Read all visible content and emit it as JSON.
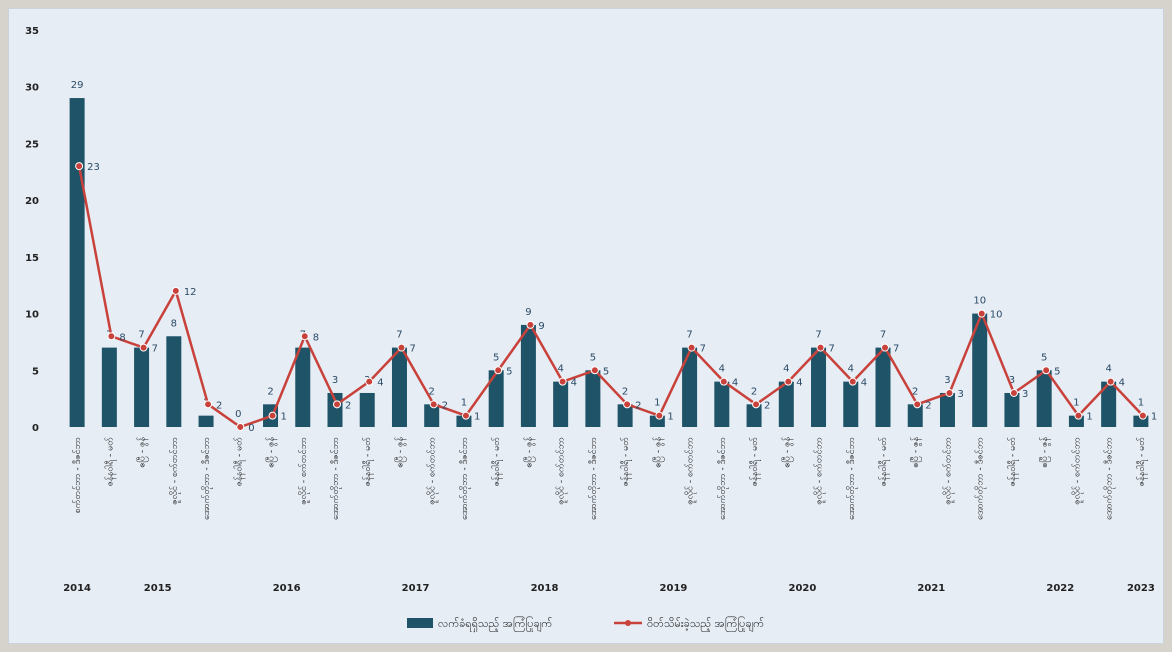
{
  "chart_data": {
    "type": "bar+line",
    "ylim": [
      0,
      35
    ],
    "yticks": [
      0,
      5,
      10,
      15,
      20,
      25,
      30,
      35
    ],
    "grid": false,
    "legend_position": "bottom-center",
    "colors": {
      "bar": "#1f5468",
      "line": "#c9413b",
      "marker": "#c9413b",
      "background": "#e6edf5"
    },
    "categories": [
      "စက်တင်ဘာ - ဒီဇင်ဘာ",
      "ဇန်နဝါရီ - မတ်",
      "ဧပြီ - ဇွန်",
      "ဇူလိုင် - စက်တင်ဘာ",
      "အောက်တိုဘာ - ဒီဇင်ဘာ",
      "ဇန်နဝါရီ - မတ်",
      "ဧပြီ - ဇွန်",
      "ဇူလိုင် - စက်တင်ဘာ",
      "အောက်တိုဘာ - ဒီဇင်ဘာ",
      "ဇန်နဝါရီ - မတ်",
      "ဧပြီ - ဇွန်",
      "ဇူလိုင် - စက်တင်ဘာ",
      "အောက်တိုဘာ - ဒီဇင်ဘာ",
      "ဇန်နဝါရီ - မတ်",
      "ဧပြီ - ဇွန်",
      "ဇူလိုင် - စက်တင်ဘာ",
      "အောက်တိုဘာ - ဒီဇင်ဘာ",
      "ဇန်နဝါရီ - မတ်",
      "ဧပြီ - ဇွန်",
      "ဇူလိုင် - စက်တင်ဘာ",
      "အောက်တိုဘာ - ဒီဇင်ဘာ",
      "ဇန်နဝါရီ - မတ်",
      "ဧပြီ - ဇွန်",
      "ဇူလိုင် - စက်တင်ဘာ",
      "အောက်တိုဘာ - ဒီဇင်ဘာ",
      "ဇန်နဝါရီ - မတ်",
      "ဧပြီ - ဇွန်",
      "ဇူလိုင် - စက်တင်ဘာ",
      "အောက်တိုဘာ - ဒီဇင်ဘာ",
      "ဇန်နဝါရီ - မတ်",
      "ဧပြီ - ဇွန်",
      "ဇူလိုင် - စက်တင်ဘာ",
      "အောက်တိုဘာ - ဒီဇင်ဘာ",
      "ဇန်နဝါရီ - မတ်"
    ],
    "years": [
      {
        "label": "2014",
        "from": 0,
        "to": 0
      },
      {
        "label": "2015",
        "from": 1,
        "to": 4
      },
      {
        "label": "2016",
        "from": 5,
        "to": 8
      },
      {
        "label": "2017",
        "from": 9,
        "to": 12
      },
      {
        "label": "2018",
        "from": 13,
        "to": 16
      },
      {
        "label": "2019",
        "from": 17,
        "to": 20
      },
      {
        "label": "2020",
        "from": 21,
        "to": 24
      },
      {
        "label": "2021",
        "from": 25,
        "to": 28
      },
      {
        "label": "2022",
        "from": 29,
        "to": 32
      },
      {
        "label": "2023",
        "from": 33,
        "to": 33
      }
    ],
    "series": [
      {
        "name": "လက်ခံရရှိသည့် အကြံပြုချက်",
        "type": "bar",
        "values": [
          29,
          7,
          7,
          8,
          1,
          0,
          2,
          7,
          3,
          3,
          7,
          2,
          1,
          5,
          9,
          4,
          5,
          2,
          1,
          7,
          4,
          2,
          4,
          7,
          4,
          7,
          2,
          3,
          10,
          3,
          5,
          1,
          4,
          1
        ]
      },
      {
        "name": "ဝိတ်သိမ်းခဲ့သည့် အကြံပြုချက်",
        "type": "line",
        "values": [
          23,
          8,
          7,
          12,
          2,
          0,
          1,
          8,
          2,
          4,
          7,
          2,
          1,
          5,
          9,
          4,
          5,
          2,
          1,
          7,
          4,
          2,
          4,
          7,
          4,
          7,
          2,
          3,
          10,
          3,
          5,
          1,
          4,
          1
        ]
      }
    ]
  }
}
